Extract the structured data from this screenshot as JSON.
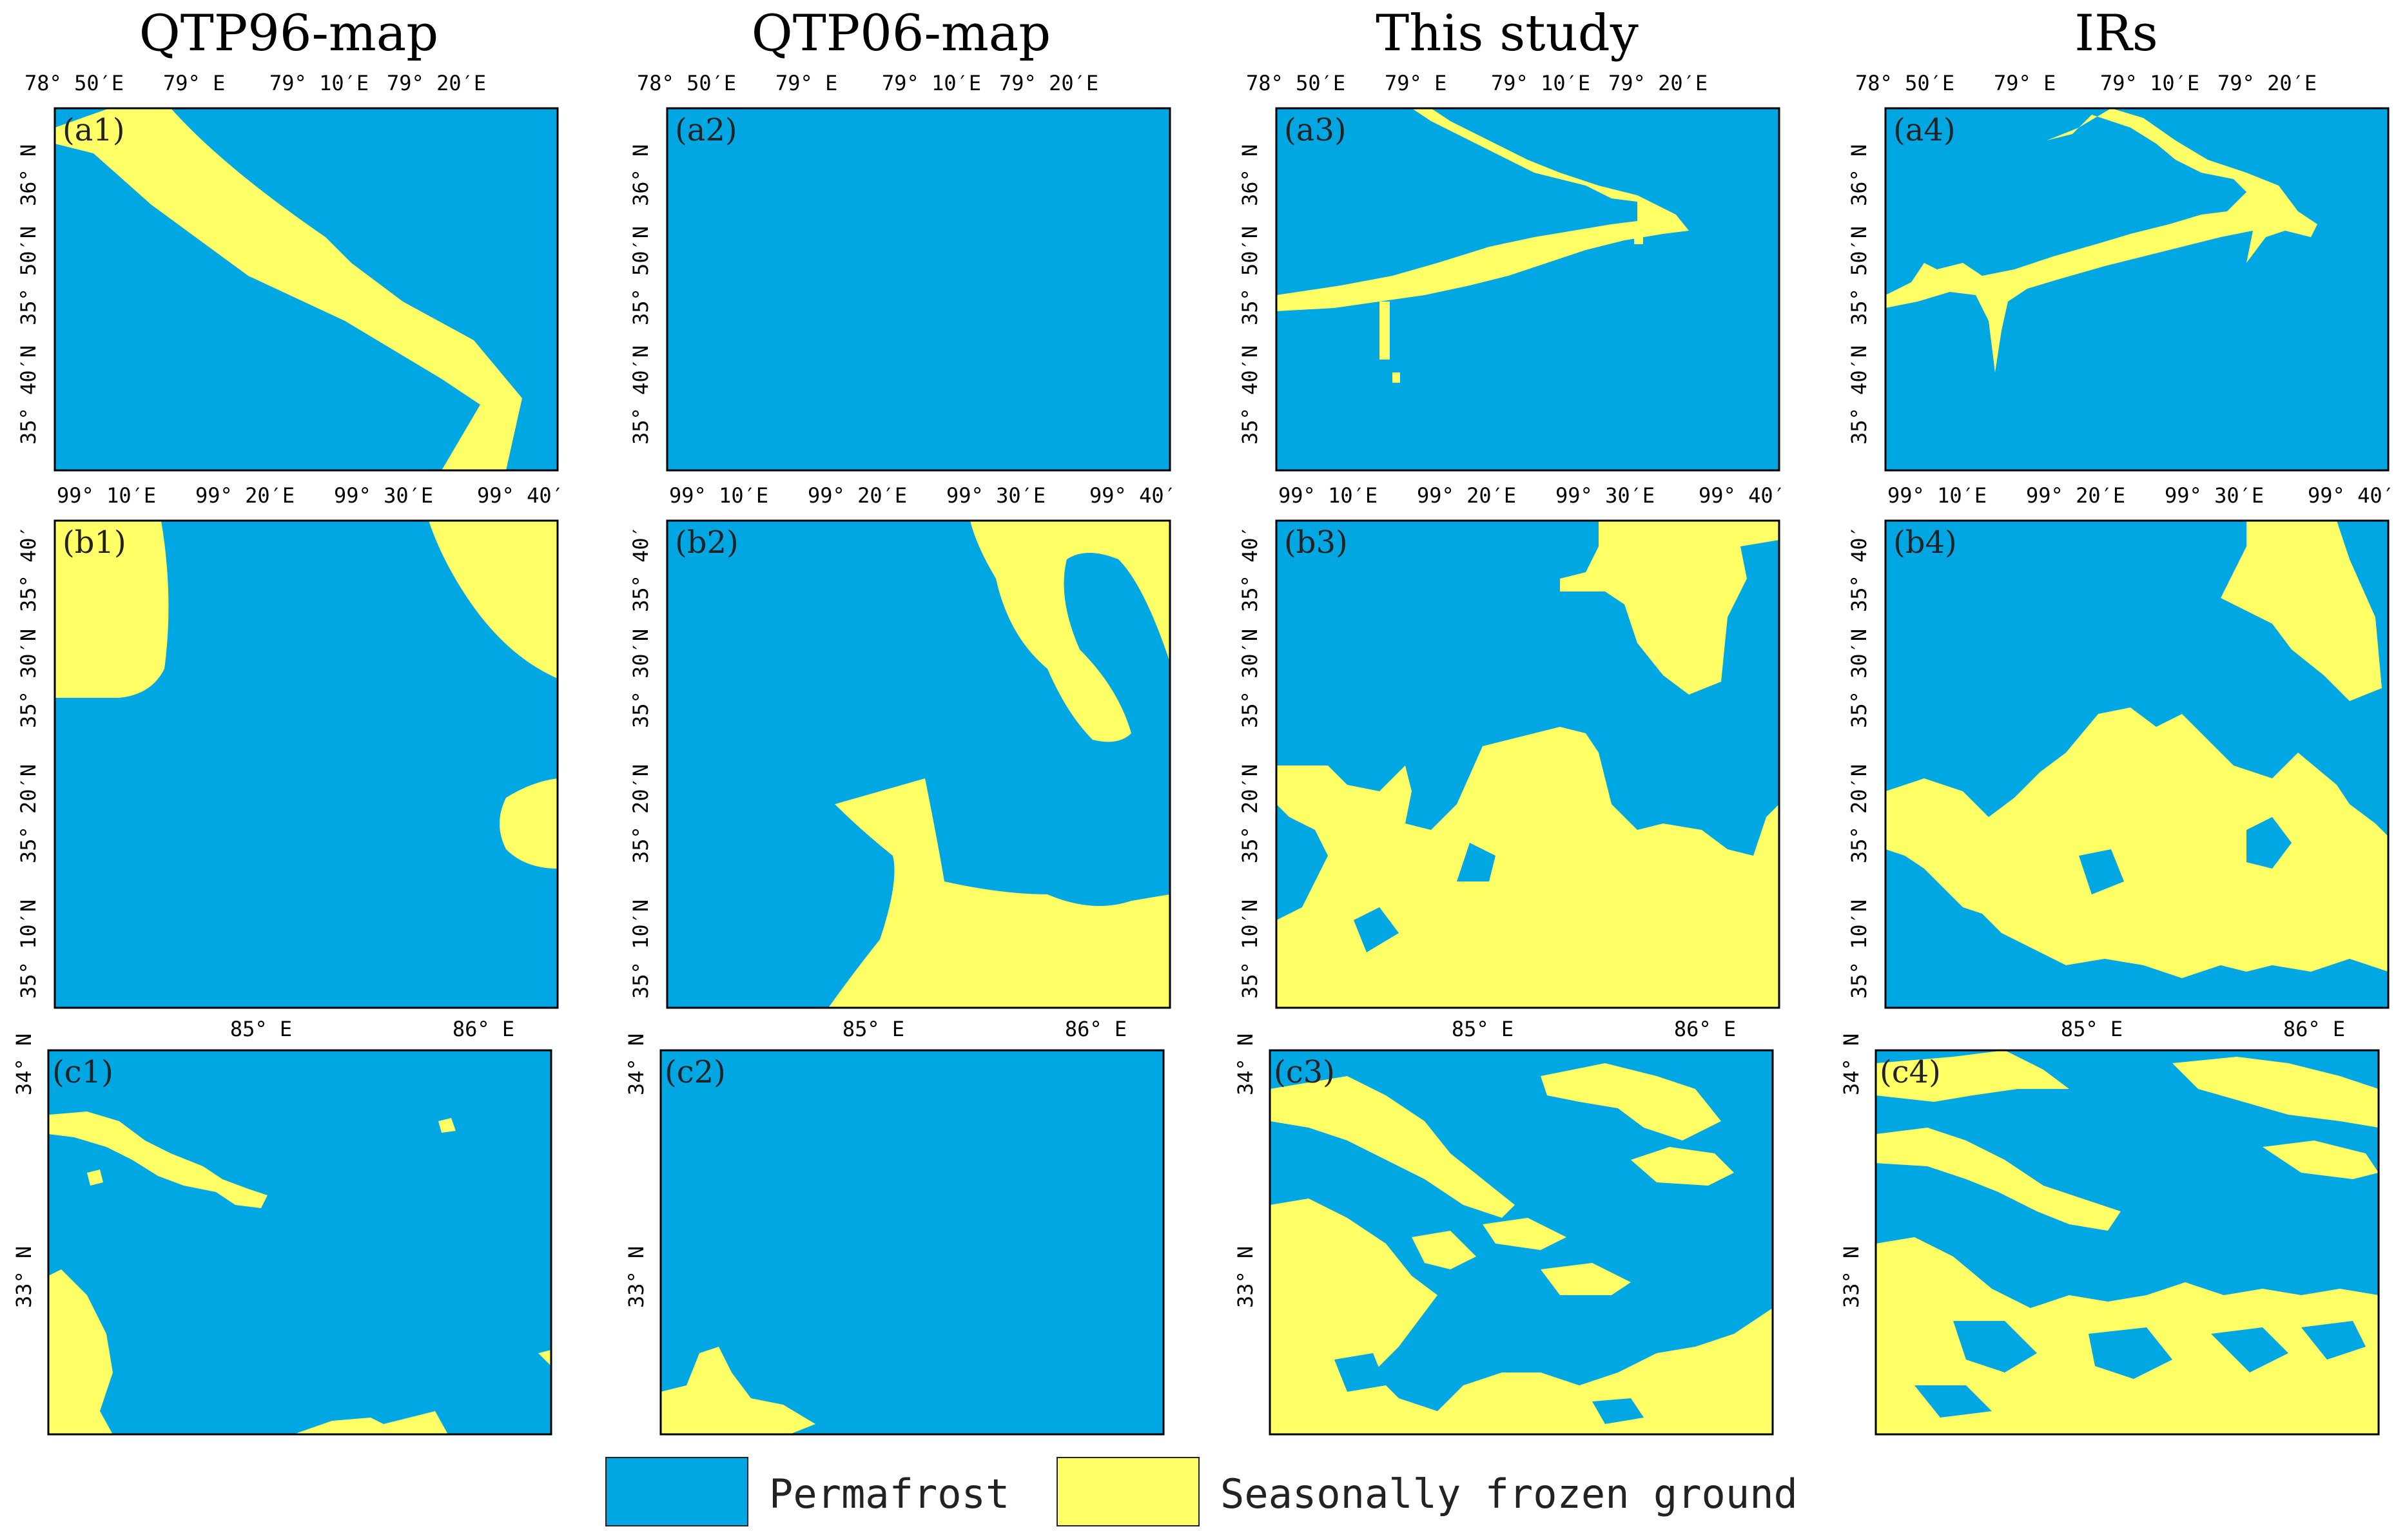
{
  "columns": [
    {
      "title": "QTP96-map"
    },
    {
      "title": "QTP06-map"
    },
    {
      "title": "This study"
    },
    {
      "title": "IRs"
    }
  ],
  "rows": [
    {
      "id": "a",
      "top_ticks": [
        "78° 50′E",
        "79° E",
        "79° 10′E",
        "79° 20′E"
      ],
      "left_ticks": [
        "35° 40′N",
        "35° 50′N",
        "36° N"
      ],
      "panels": [
        "(a1)",
        "(a2)",
        "(a3)",
        "(a4)"
      ]
    },
    {
      "id": "b",
      "top_ticks": [
        "99° 10′E",
        "99° 20′E",
        "99° 30′E",
        "99° 40′"
      ],
      "left_ticks": [
        "35° 10′N",
        "35° 20′N",
        "35° 30′N",
        "35° 40′"
      ],
      "panels": [
        "(b1)",
        "(b2)",
        "(b3)",
        "(b4)"
      ]
    },
    {
      "id": "c",
      "bottom_ticks": [
        "85° E",
        "86° E"
      ],
      "left_ticks": [
        "33° N",
        "34° N"
      ],
      "panels": [
        "(c1)",
        "(c2)",
        "(c3)",
        "(c4)"
      ]
    }
  ],
  "legend": [
    {
      "label": "Permafrost",
      "color": "#00A7E3"
    },
    {
      "label": "Seasonally frozen ground",
      "color": "#FFFF66"
    }
  ],
  "colors": {
    "permafrost": "#00A7E3",
    "seasonal": "#FFFF66"
  }
}
